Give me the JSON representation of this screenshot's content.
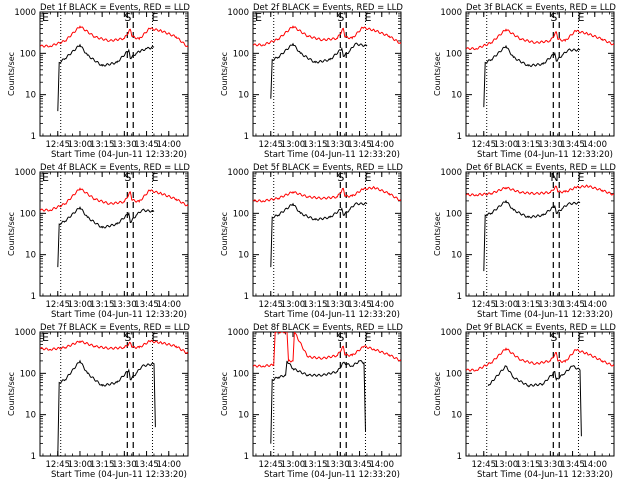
{
  "figure": {
    "ylabel": "Counts/sec",
    "xlabel_prefix": "Start Time (04-Jun-11 12:33:20)",
    "xtick_labels": [
      "12:45",
      "13:00",
      "13:15",
      "13:30",
      "13:45",
      "14:00"
    ],
    "ytick_labels": [
      "1",
      "10",
      "100",
      "1000"
    ],
    "colors": {
      "events": "#000000",
      "lld": "#ff0000",
      "axis": "#000000"
    }
  },
  "chart_data": [
    {
      "type": "line",
      "title": "Det 1f BLACK = Events, RED = LLD",
      "marker_letters": [
        "E",
        "S",
        "E"
      ],
      "xlim": [
        "12:33",
        "14:13"
      ],
      "ylim": [
        1,
        1000
      ],
      "yscale": "log",
      "series": [
        {
          "name": "Events",
          "color": "#000000",
          "x": [
            "12:45",
            "12:46",
            "12:50",
            "13:00",
            "13:05",
            "13:15",
            "13:25",
            "13:33",
            "13:34",
            "13:38",
            "13:40",
            "13:45",
            "13:50"
          ],
          "values": [
            4,
            60,
            75,
            160,
            90,
            50,
            60,
            120,
            75,
            100,
            110,
            130,
            140
          ]
        },
        {
          "name": "LLD",
          "color": "#ff0000",
          "x": [
            "12:33",
            "12:40",
            "12:50",
            "13:00",
            "13:10",
            "13:20",
            "13:30",
            "13:34",
            "13:35",
            "13:40",
            "13:47",
            "13:55",
            "14:05",
            "14:13"
          ],
          "values": [
            150,
            150,
            200,
            450,
            250,
            200,
            230,
            380,
            260,
            220,
            400,
            350,
            250,
            140
          ]
        }
      ]
    },
    {
      "type": "line",
      "title": "Det 2f BLACK = Events, RED = LLD",
      "marker_letters": [
        "E",
        "S",
        "E"
      ],
      "xlim": [
        "12:33",
        "14:13"
      ],
      "ylim": [
        1,
        1000
      ],
      "yscale": "log",
      "series": [
        {
          "name": "Events",
          "color": "#000000",
          "x": [
            "12:45",
            "12:46",
            "12:50",
            "13:00",
            "13:05",
            "13:15",
            "13:25",
            "13:33",
            "13:34",
            "13:38",
            "13:42",
            "13:50"
          ],
          "values": [
            8,
            70,
            80,
            170,
            100,
            60,
            70,
            130,
            85,
            110,
            170,
            150
          ]
        },
        {
          "name": "LLD",
          "color": "#ff0000",
          "x": [
            "12:33",
            "12:40",
            "12:50",
            "13:00",
            "13:10",
            "13:20",
            "13:30",
            "13:34",
            "13:35",
            "13:40",
            "13:47",
            "13:55",
            "14:05",
            "14:13"
          ],
          "values": [
            160,
            160,
            220,
            450,
            260,
            210,
            230,
            400,
            250,
            230,
            420,
            360,
            260,
            170
          ]
        }
      ]
    },
    {
      "type": "line",
      "title": "Det 3f BLACK = Events, RED = LLD",
      "marker_letters": [
        "S",
        "E"
      ],
      "xlim": [
        "12:33",
        "14:13"
      ],
      "ylim": [
        1,
        1000
      ],
      "yscale": "log",
      "series": [
        {
          "name": "Events",
          "color": "#000000",
          "x": [
            "12:45",
            "12:46",
            "12:50",
            "13:00",
            "13:05",
            "13:15",
            "13:25",
            "13:33",
            "13:34",
            "13:38",
            "13:42",
            "13:50"
          ],
          "values": [
            5,
            60,
            70,
            150,
            80,
            50,
            55,
            100,
            65,
            90,
            120,
            120
          ]
        },
        {
          "name": "LLD",
          "color": "#ff0000",
          "x": [
            "12:33",
            "12:40",
            "12:50",
            "13:00",
            "13:10",
            "13:20",
            "13:30",
            "13:34",
            "13:35",
            "13:40",
            "13:47",
            "13:55",
            "14:05",
            "14:13"
          ],
          "values": [
            130,
            130,
            180,
            380,
            220,
            180,
            200,
            330,
            220,
            200,
            350,
            300,
            220,
            160
          ]
        }
      ]
    },
    {
      "type": "line",
      "title": "Det 4f BLACK = Events, RED = LLD",
      "marker_letters": [
        "E",
        "S",
        "E"
      ],
      "xlim": [
        "12:33",
        "14:13"
      ],
      "ylim": [
        1,
        1000
      ],
      "yscale": "log",
      "series": [
        {
          "name": "Events",
          "color": "#000000",
          "x": [
            "12:45",
            "12:46",
            "12:50",
            "13:00",
            "13:05",
            "13:15",
            "13:25",
            "13:33",
            "13:34",
            "13:38",
            "13:42",
            "13:50"
          ],
          "values": [
            5,
            55,
            65,
            140,
            80,
            45,
            55,
            100,
            60,
            90,
            120,
            110
          ]
        },
        {
          "name": "LLD",
          "color": "#ff0000",
          "x": [
            "12:33",
            "12:40",
            "12:50",
            "13:00",
            "13:10",
            "13:20",
            "13:30",
            "13:34",
            "13:35",
            "13:40",
            "13:47",
            "13:55",
            "14:05",
            "14:13"
          ],
          "values": [
            120,
            120,
            170,
            400,
            220,
            170,
            190,
            330,
            210,
            190,
            360,
            300,
            220,
            150
          ]
        }
      ]
    },
    {
      "type": "line",
      "title": "Det 5f BLACK = Events, RED = LLD",
      "marker_letters": [
        "S",
        "E"
      ],
      "xlim": [
        "12:33",
        "14:13"
      ],
      "ylim": [
        1,
        1000
      ],
      "yscale": "log",
      "series": [
        {
          "name": "Events",
          "color": "#000000",
          "x": [
            "12:45",
            "12:46",
            "12:50",
            "13:00",
            "13:05",
            "13:15",
            "13:25",
            "13:33",
            "13:34",
            "13:38",
            "13:42",
            "13:50"
          ],
          "values": [
            5,
            80,
            90,
            170,
            100,
            70,
            80,
            130,
            90,
            120,
            170,
            170
          ]
        },
        {
          "name": "LLD",
          "color": "#ff0000",
          "x": [
            "12:33",
            "12:40",
            "12:50",
            "13:00",
            "13:10",
            "13:20",
            "13:30",
            "13:34",
            "13:35",
            "13:40",
            "13:47",
            "13:55",
            "14:05",
            "14:13"
          ],
          "values": [
            200,
            200,
            230,
            330,
            250,
            230,
            250,
            400,
            260,
            260,
            380,
            420,
            300,
            200
          ]
        }
      ]
    },
    {
      "type": "line",
      "title": "Det 6f BLACK = Events, RED = LLD",
      "marker_letters": [
        "N",
        "E"
      ],
      "xlim": [
        "12:33",
        "14:13"
      ],
      "ylim": [
        1,
        1000
      ],
      "yscale": "log",
      "series": [
        {
          "name": "Events",
          "color": "#000000",
          "x": [
            "12:45",
            "12:46",
            "12:50",
            "13:00",
            "13:05",
            "13:15",
            "13:25",
            "13:33",
            "13:34",
            "13:38",
            "13:42",
            "13:50"
          ],
          "values": [
            4,
            90,
            100,
            200,
            120,
            80,
            90,
            150,
            100,
            130,
            170,
            180
          ]
        },
        {
          "name": "LLD",
          "color": "#ff0000",
          "x": [
            "12:33",
            "12:40",
            "12:50",
            "13:00",
            "13:10",
            "13:20",
            "13:30",
            "13:34",
            "13:35",
            "13:40",
            "13:47",
            "13:55",
            "14:05",
            "14:13"
          ],
          "values": [
            280,
            280,
            300,
            420,
            320,
            300,
            320,
            450,
            330,
            330,
            420,
            460,
            360,
            280
          ]
        }
      ]
    },
    {
      "type": "line",
      "title": "Det 7f BLACK = Events, RED = LLD",
      "marker_letters": [
        "E",
        "S",
        "E"
      ],
      "xlim": [
        "12:33",
        "14:13"
      ],
      "ylim": [
        1,
        1000
      ],
      "yscale": "log",
      "series": [
        {
          "name": "Events",
          "color": "#000000",
          "x": [
            "12:45",
            "12:46",
            "12:50",
            "13:00",
            "13:05",
            "13:15",
            "13:25",
            "13:33",
            "13:34",
            "13:38",
            "13:42",
            "13:50",
            "13:51"
          ],
          "values": [
            1,
            60,
            70,
            200,
            100,
            50,
            60,
            120,
            70,
            100,
            150,
            170,
            5
          ]
        },
        {
          "name": "LLD",
          "color": "#ff0000",
          "x": [
            "12:33",
            "12:40",
            "12:50",
            "13:00",
            "13:10",
            "13:20",
            "13:30",
            "13:34",
            "13:35",
            "13:40",
            "13:47",
            "13:55",
            "14:05",
            "14:13"
          ],
          "values": [
            400,
            380,
            420,
            600,
            450,
            400,
            420,
            550,
            430,
            420,
            600,
            550,
            450,
            300
          ]
        }
      ]
    },
    {
      "type": "line",
      "title": "Det 8f BLACK = Events, RED = LLD",
      "marker_letters": [
        "S",
        "E"
      ],
      "xlim": [
        "12:33",
        "14:13"
      ],
      "ylim": [
        1,
        1000
      ],
      "yscale": "log",
      "series": [
        {
          "name": "Events",
          "color": "#000000",
          "x": [
            "12:45",
            "12:46",
            "12:50",
            "12:55",
            "12:56",
            "13:00",
            "13:10",
            "13:20",
            "13:30",
            "13:34",
            "13:40",
            "13:45",
            "13:48",
            "13:49"
          ],
          "values": [
            2,
            70,
            80,
            90,
            200,
            130,
            90,
            90,
            110,
            180,
            150,
            200,
            180,
            4
          ]
        },
        {
          "name": "LLD",
          "color": "#ff0000",
          "x": [
            "12:33",
            "12:40",
            "12:47",
            "12:48",
            "12:56",
            "12:57",
            "13:00",
            "13:01",
            "13:10",
            "13:20",
            "13:30",
            "13:34",
            "13:35",
            "13:40",
            "13:48",
            "13:55",
            "14:05",
            "14:13"
          ],
          "values": [
            150,
            150,
            160,
            1000,
            1000,
            200,
            200,
            1000,
            250,
            230,
            270,
            450,
            280,
            270,
            450,
            380,
            280,
            200
          ]
        }
      ]
    },
    {
      "type": "line",
      "title": "Det 9f BLACK = Events, RED = LLD",
      "marker_letters": [
        "S",
        "E"
      ],
      "xlim": [
        "12:33",
        "14:13"
      ],
      "ylim": [
        1,
        1000
      ],
      "yscale": "log",
      "series": [
        {
          "name": "Events",
          "color": "#000000",
          "x": [
            "12:48",
            "12:50",
            "13:00",
            "13:05",
            "13:15",
            "13:25",
            "13:33",
            "13:34",
            "13:38",
            "13:45",
            "13:50",
            "13:51"
          ],
          "values": [
            50,
            60,
            150,
            80,
            50,
            55,
            110,
            70,
            90,
            150,
            120,
            3
          ]
        },
        {
          "name": "LLD",
          "color": "#ff0000",
          "x": [
            "12:33",
            "12:40",
            "12:50",
            "13:00",
            "13:10",
            "13:20",
            "13:30",
            "13:34",
            "13:35",
            "13:40",
            "13:47",
            "13:55",
            "14:05",
            "14:13"
          ],
          "values": [
            120,
            120,
            180,
            400,
            210,
            170,
            200,
            320,
            200,
            190,
            370,
            300,
            200,
            150
          ]
        }
      ]
    }
  ]
}
